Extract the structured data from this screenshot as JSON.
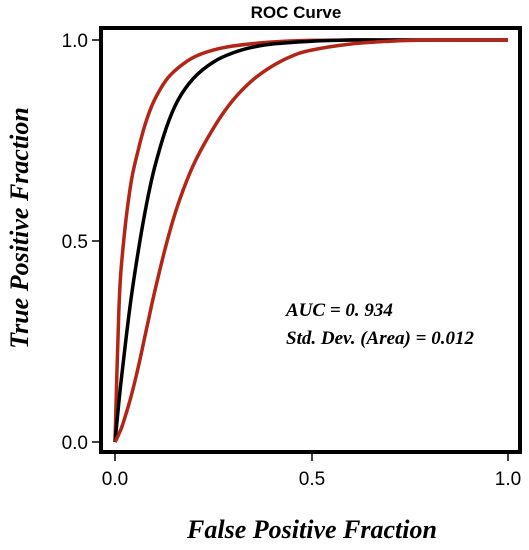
{
  "chart_data": {
    "type": "line",
    "title": "ROC Curve",
    "xlabel": "False Positive Fraction",
    "ylabel": "True Positive Fraction",
    "xlim": [
      0,
      1
    ],
    "ylim": [
      0,
      1
    ],
    "x_ticks": [
      "0.0",
      "0.5",
      "1.0"
    ],
    "y_ticks": [
      "0.0",
      "0.5",
      "1.0"
    ],
    "grid": false,
    "legend": "none",
    "annotations": [
      "AUC = 0. 934",
      "Std. Dev. (Area) = 0.012"
    ],
    "series": [
      {
        "color": "#b22618",
        "x": [
          0,
          0.01,
          0.02,
          0.04,
          0.06,
          0.08,
          0.1,
          0.13,
          0.16,
          0.2,
          0.25,
          0.3,
          0.4,
          0.5,
          0.6,
          0.7,
          0.8,
          0.9,
          1.0
        ],
        "y": [
          0,
          0.33,
          0.48,
          0.64,
          0.73,
          0.8,
          0.85,
          0.9,
          0.93,
          0.957,
          0.975,
          0.985,
          0.995,
          0.999,
          1.0,
          1.0,
          1.0,
          1.0,
          1.0
        ]
      },
      {
        "color": "#000000",
        "x": [
          0,
          0.01,
          0.02,
          0.04,
          0.06,
          0.08,
          0.1,
          0.13,
          0.16,
          0.2,
          0.25,
          0.3,
          0.35,
          0.4,
          0.5,
          0.6,
          0.7,
          0.8,
          1.0
        ],
        "y": [
          0,
          0.1,
          0.19,
          0.35,
          0.48,
          0.59,
          0.68,
          0.78,
          0.85,
          0.905,
          0.945,
          0.968,
          0.982,
          0.99,
          0.997,
          1.0,
          1.0,
          1.0,
          1.0
        ]
      },
      {
        "color": "#b22618",
        "x": [
          0,
          0.01,
          0.02,
          0.04,
          0.06,
          0.08,
          0.1,
          0.13,
          0.16,
          0.2,
          0.25,
          0.3,
          0.35,
          0.4,
          0.45,
          0.5,
          0.6,
          0.7,
          0.8,
          0.9,
          1.0
        ],
        "y": [
          0,
          0.02,
          0.045,
          0.11,
          0.19,
          0.28,
          0.37,
          0.49,
          0.59,
          0.69,
          0.78,
          0.85,
          0.9,
          0.935,
          0.96,
          0.975,
          0.99,
          0.997,
          1.0,
          1.0,
          1.0
        ]
      }
    ]
  }
}
